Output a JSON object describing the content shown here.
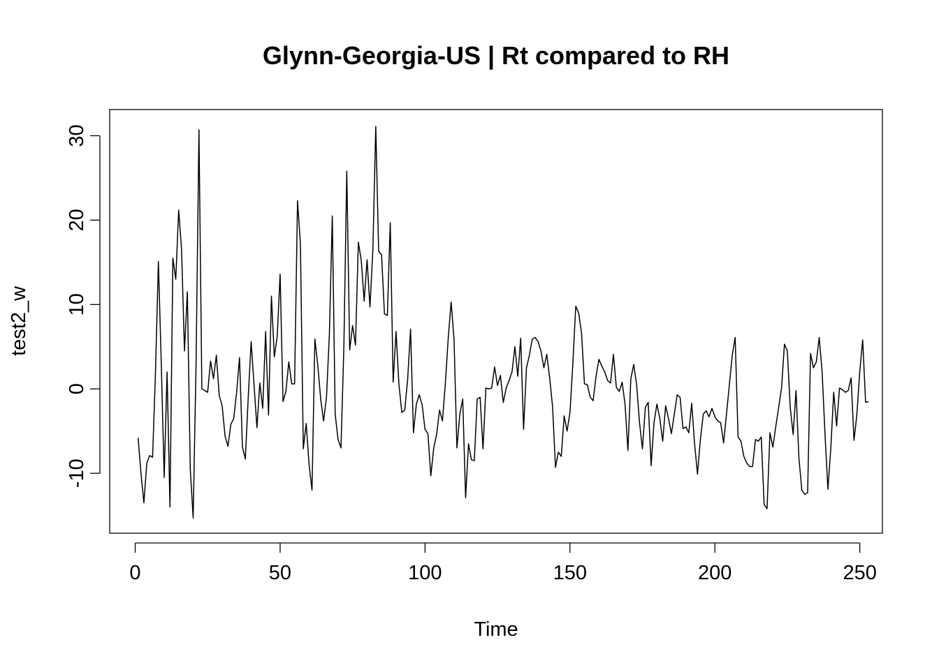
{
  "chart_data": {
    "type": "line",
    "title": "Glynn-Georgia-US | Rt compared to RH",
    "xlabel": "Time",
    "ylabel": "test2_w",
    "xlim": [
      -8.8,
      257.8
    ],
    "ylim": [
      -17.1,
      33.1
    ],
    "x_ticks": [
      0,
      50,
      100,
      150,
      200,
      250
    ],
    "x_tick_labels": [
      "0",
      "50",
      "100",
      "150",
      "200",
      "250"
    ],
    "y_ticks": [
      -10,
      0,
      10,
      20,
      30
    ],
    "y_tick_labels": [
      "-10",
      "0",
      "10",
      "20",
      "30"
    ],
    "grid": false,
    "legend": "none",
    "line_color": "#000000",
    "series": [
      {
        "x_start": 1,
        "x_step": 1,
        "values": [
          -5.8,
          -10.0,
          -13.5,
          -8.8,
          -7.9,
          -8.1,
          2.0,
          15.1,
          3.0,
          -10.5,
          2.0,
          -14.0,
          15.5,
          13.0,
          21.2,
          16.5,
          4.5,
          11.5,
          -9.5,
          -15.3,
          3.0,
          30.7,
          0.0,
          -0.2,
          -0.4,
          3.3,
          1.2,
          4.0,
          -0.8,
          -2.0,
          -5.6,
          -6.8,
          -4.2,
          -3.5,
          -0.4,
          3.7,
          -6.9,
          -8.3,
          -1.0,
          5.6,
          0.5,
          -4.6,
          0.7,
          -2.3,
          6.8,
          -3.1,
          11.0,
          3.8,
          6.2,
          13.6,
          -1.5,
          -0.3,
          3.2,
          0.6,
          0.6,
          22.3,
          17.2,
          -7.1,
          -4.1,
          -9.0,
          -12.0,
          5.9,
          2.8,
          -1.2,
          -3.8,
          -1.0,
          6.5,
          20.5,
          -3.0,
          -6.0,
          -7.0,
          5.0,
          25.8,
          4.6,
          7.5,
          5.2,
          17.4,
          15.2,
          10.4,
          15.3,
          9.7,
          16.5,
          31.1,
          16.3,
          15.9,
          8.9,
          8.7,
          19.7,
          0.8,
          6.8,
          0.5,
          -2.8,
          -2.5,
          1.1,
          7.1,
          -5.2,
          -1.8,
          -0.7,
          -1.9,
          -4.8,
          -5.3,
          -10.3,
          -7.0,
          -5.4,
          -2.5,
          -3.8,
          0.6,
          6.0,
          10.3,
          5.9,
          -7.0,
          -3.0,
          -1.2,
          -12.9,
          -6.5,
          -8.4,
          -8.5,
          -1.2,
          -1.0,
          -7.1,
          0.1,
          0.0,
          0.1,
          2.6,
          0.4,
          1.6,
          -1.6,
          0.1,
          1.0,
          2.0,
          5.0,
          1.5,
          6.0,
          -4.8,
          2.5,
          4.0,
          5.9,
          6.1,
          5.6,
          4.5,
          2.5,
          4.1,
          1.3,
          -2.1,
          -9.3,
          -7.5,
          -8.0,
          -3.2,
          -5.0,
          -2.8,
          3.0,
          9.8,
          9.0,
          6.6,
          0.6,
          0.5,
          -1.0,
          -1.4,
          1.5,
          3.5,
          2.7,
          2.0,
          1.0,
          0.7,
          4.1,
          0.2,
          -0.3,
          0.8,
          -1.8,
          -7.3,
          1.2,
          2.9,
          0.5,
          -4.0,
          -7.1,
          -2.2,
          -1.6,
          -9.1,
          -4.0,
          -1.8,
          -3.5,
          -6.2,
          -2.0,
          -3.5,
          -5.3,
          -3.0,
          -0.7,
          -1.0,
          -4.7,
          -4.5,
          -5.2,
          -1.7,
          -6.5,
          -10.1,
          -6.0,
          -3.0,
          -2.6,
          -3.3,
          -2.3,
          -3.3,
          -3.8,
          -4.0,
          -6.4,
          -3.0,
          0.5,
          4.0,
          6.1,
          -5.7,
          -6.2,
          -8.0,
          -8.8,
          -9.2,
          -9.2,
          -6.0,
          -6.2,
          -5.7,
          -13.7,
          -14.2,
          -5.2,
          -6.9,
          -4.5,
          -2.2,
          0.1,
          5.3,
          4.5,
          -2.2,
          -5.4,
          -0.2,
          -8.2,
          -12.0,
          -12.5,
          -12.3,
          4.2,
          2.5,
          3.2,
          6.1,
          2.0,
          -5.4,
          -11.9,
          -7.0,
          -0.4,
          -4.4,
          0.1,
          -0.1,
          -0.4,
          -0.2,
          1.3,
          -6.1,
          -3.0,
          2.1,
          5.8,
          -1.6,
          -1.5
        ]
      }
    ]
  }
}
